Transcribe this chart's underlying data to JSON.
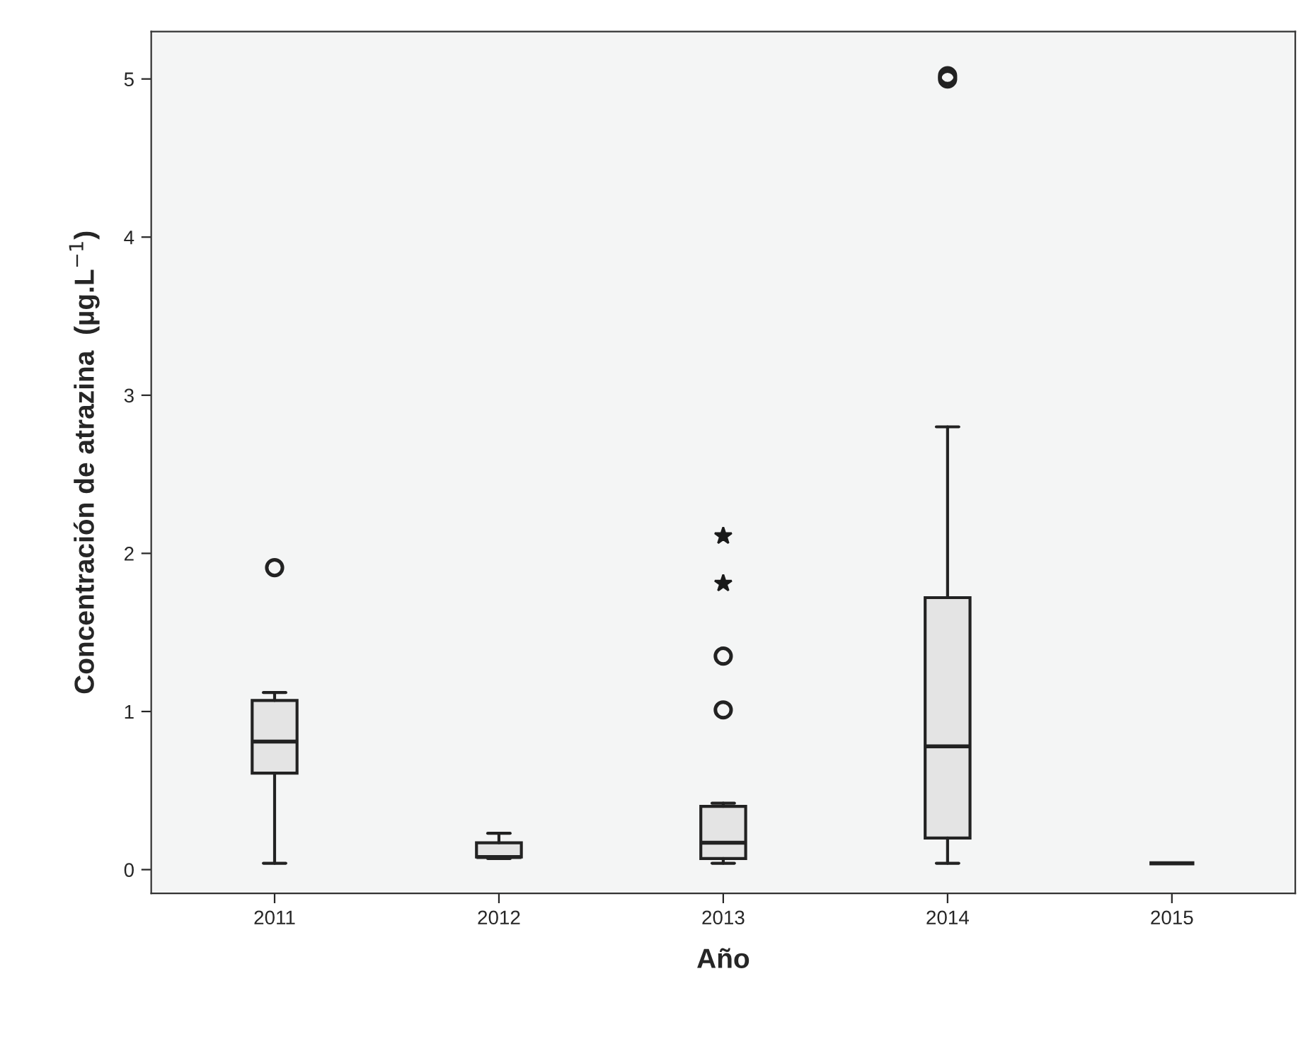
{
  "chart_data": {
    "type": "box",
    "xlabel": "Año",
    "ylabel": "Concentración de atrazina  (µg.L$^{−1}$)",
    "categories": [
      "2011",
      "2012",
      "2013",
      "2014",
      "2015"
    ],
    "boxes": [
      {
        "low": 0.04,
        "q1": 0.61,
        "median": 0.81,
        "q3": 1.07,
        "high": 1.12,
        "outliers": [
          1.91
        ]
      },
      {
        "low": 0.07,
        "q1": 0.08,
        "median": 0.08,
        "q3": 0.17,
        "high": 0.23
      },
      {
        "low": 0.04,
        "q1": 0.07,
        "median": 0.17,
        "q3": 0.4,
        "high": 0.42,
        "outliers": [
          1.01,
          1.35
        ]
      },
      {
        "low": 0.04,
        "q1": 0.2,
        "median": 0.78,
        "q3": 1.72,
        "high": 2.8,
        "outliers": [
          5.0,
          5.02
        ]
      },
      {
        "low": 0.04,
        "q1": 0.04,
        "median": 0.04,
        "q3": 0.04,
        "high": 0.04
      }
    ],
    "color": "#e4e4e4",
    "series": [
      {
        "type": "scatter",
        "marker": "star",
        "color": "#1a1a1a",
        "values": [
          null,
          null,
          2.11,
          null,
          null
        ]
      },
      {
        "type": "scatter",
        "marker": "star",
        "color": "#1a1a1a",
        "values": [
          null,
          null,
          1.81,
          null,
          null
        ]
      }
    ],
    "ylim": [
      -0.15,
      5.3
    ],
    "yticks": [
      0,
      1,
      2,
      3,
      4,
      5
    ],
    "grid": false
  }
}
